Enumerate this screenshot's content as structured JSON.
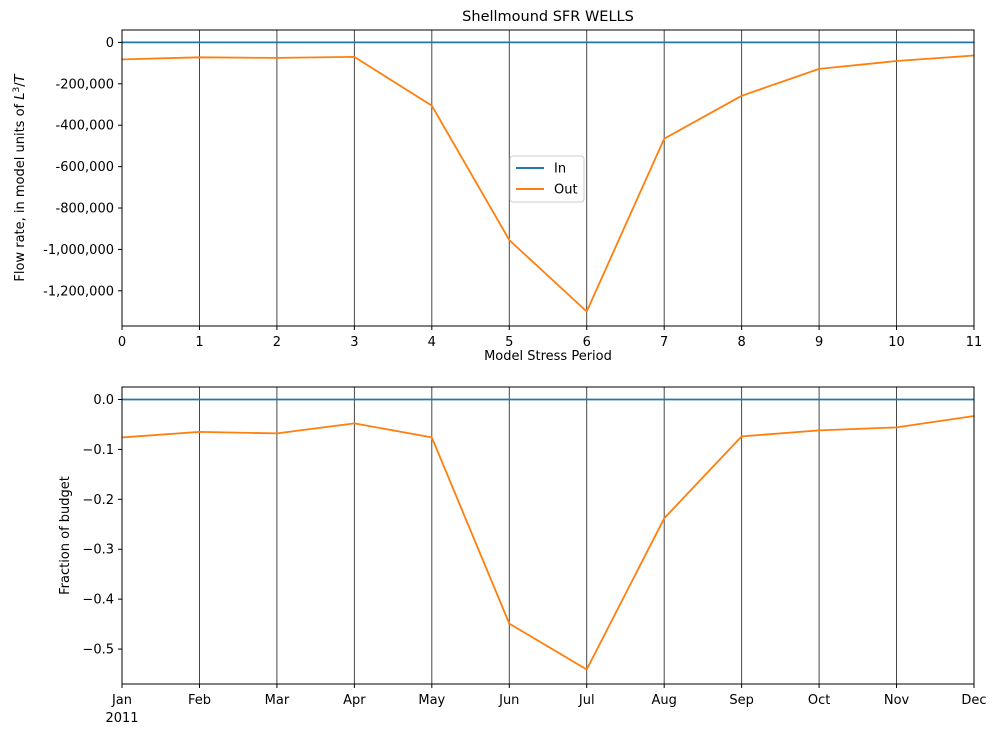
{
  "chart_data": [
    {
      "type": "line",
      "title": "Shellmound SFR WELLS",
      "xlabel": "Model Stress Period",
      "ylabel": "Flow rate, in model units of L³/T",
      "x": [
        0,
        1,
        2,
        3,
        4,
        5,
        6,
        7,
        8,
        9,
        10,
        11
      ],
      "xlim": [
        0,
        11
      ],
      "ylim": [
        -1370000,
        60000
      ],
      "xticks": [
        "0",
        "1",
        "2",
        "3",
        "4",
        "5",
        "6",
        "7",
        "8",
        "9",
        "10",
        "11"
      ],
      "yticks": [
        0,
        -200000,
        -400000,
        -600000,
        -800000,
        -1000000,
        -1200000
      ],
      "ytick_labels": [
        "0",
        "-200,000",
        "-400,000",
        "-600,000",
        "-800,000",
        "-1,000,000",
        "-1,200,000"
      ],
      "grid": "vertical",
      "legend_position": "center",
      "series": [
        {
          "name": "In",
          "color": "#1f77b4",
          "values": [
            0,
            0,
            0,
            0,
            0,
            0,
            0,
            0,
            0,
            0,
            0,
            0
          ]
        },
        {
          "name": "Out",
          "color": "#ff7f0e",
          "values": [
            -82000,
            -72000,
            -75000,
            -70000,
            -305000,
            -955000,
            -1300000,
            -465000,
            -258000,
            -128000,
            -90000,
            -63000
          ]
        }
      ]
    },
    {
      "type": "line",
      "ylabel": "Fraction of budget",
      "x": [
        "Jan",
        "Feb",
        "Mar",
        "Apr",
        "May",
        "Jun",
        "Jul",
        "Aug",
        "Sep",
        "Oct",
        "Nov",
        "Dec"
      ],
      "xlim": [
        0,
        11
      ],
      "ylim": [
        -0.57,
        0.025
      ],
      "xticks": [
        "Jan",
        "Feb",
        "Mar",
        "Apr",
        "May",
        "Jun",
        "Jul",
        "Aug",
        "Sep",
        "Oct",
        "Nov",
        "Dec"
      ],
      "xtick_year": "2011",
      "yticks": [
        0.0,
        -0.1,
        -0.2,
        -0.3,
        -0.4,
        -0.5
      ],
      "ytick_labels": [
        "0.0",
        "−0.1",
        "−0.2",
        "−0.3",
        "−0.4",
        "−0.5"
      ],
      "grid": "vertical",
      "series": [
        {
          "color": "#1f77b4",
          "values": [
            0,
            0,
            0,
            0,
            0,
            0,
            0,
            0,
            0,
            0,
            0,
            0
          ]
        },
        {
          "color": "#ff7f0e",
          "values": [
            -0.076,
            -0.065,
            -0.068,
            -0.048,
            -0.076,
            -0.449,
            -0.541,
            -0.238,
            -0.074,
            -0.062,
            -0.056,
            -0.033
          ]
        }
      ]
    }
  ]
}
